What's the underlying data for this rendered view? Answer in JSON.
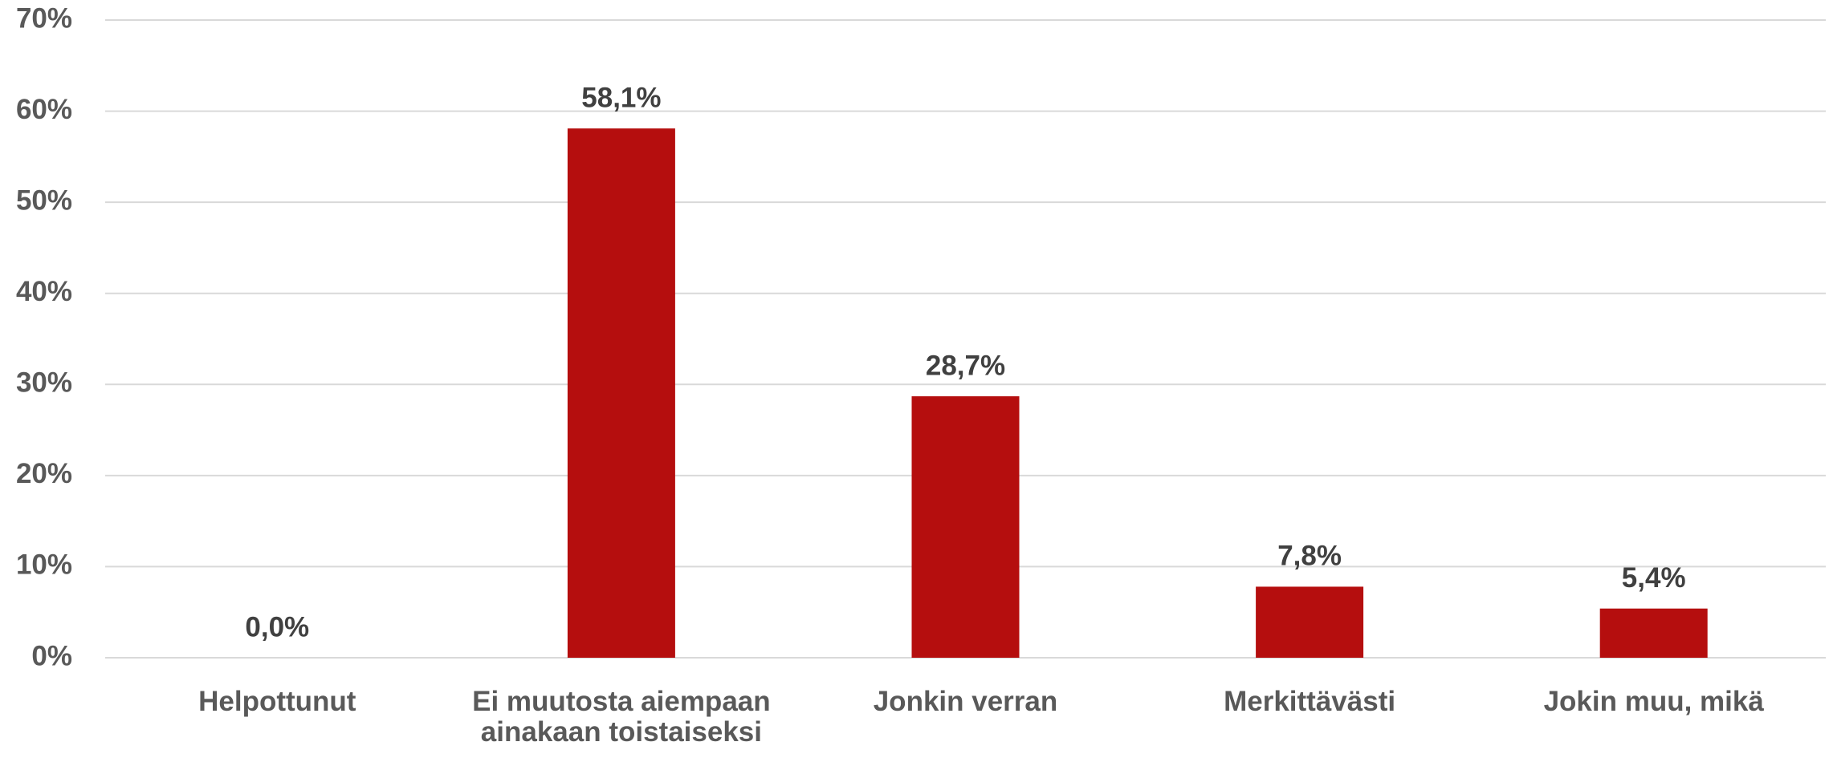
{
  "chart_data": {
    "type": "bar",
    "categories": [
      "Helpottunut",
      "Ei muutosta aiempaan ainakaan toistaiseksi",
      "Jonkin verran",
      "Merkittävästi",
      "Jokin muu, mikä"
    ],
    "values": [
      0,
      58.1,
      28.7,
      7.8,
      5.4
    ],
    "value_labels": [
      "0,0%",
      "58,1%",
      "28,7%",
      "7,8%",
      "5,4%"
    ],
    "color": "#b50e0e",
    "ylim": [
      0,
      70
    ],
    "yticks": [
      {
        "value": 0,
        "label": "0%"
      },
      {
        "value": 10,
        "label": "10%"
      },
      {
        "value": 20,
        "label": "20%"
      },
      {
        "value": 30,
        "label": "30%"
      },
      {
        "value": 40,
        "label": "40%"
      },
      {
        "value": 50,
        "label": "50%"
      },
      {
        "value": 60,
        "label": "60%"
      },
      {
        "value": 70,
        "label": "70%"
      }
    ],
    "grid": true
  }
}
